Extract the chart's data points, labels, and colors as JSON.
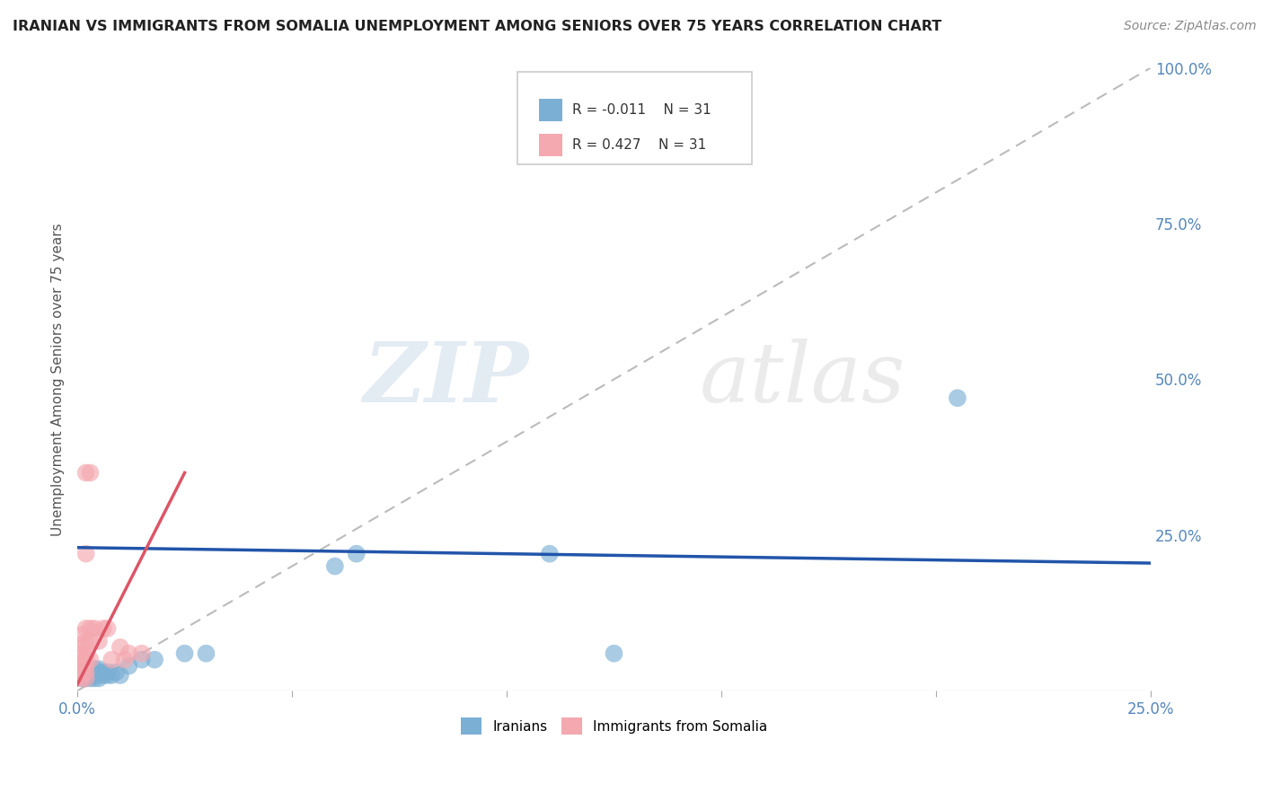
{
  "title": "IRANIAN VS IMMIGRANTS FROM SOMALIA UNEMPLOYMENT AMONG SENIORS OVER 75 YEARS CORRELATION CHART",
  "source": "Source: ZipAtlas.com",
  "ylabel": "Unemployment Among Seniors over 75 years",
  "legend_iranians": "Iranians",
  "legend_somalia": "Immigrants from Somalia",
  "R_iranians": "-0.011",
  "N_iranians": "31",
  "R_somalia": "0.427",
  "N_somalia": "31",
  "iranians_color": "#7BAFD4",
  "somalia_color": "#F4A8B0",
  "iranians_line_color": "#2255AA",
  "somalia_line_color": "#DD5566",
  "diagonal_color": "#BBBBBB",
  "background_color": "#FFFFFF",
  "watermark_zip": "ZIP",
  "watermark_atlas": "atlas",
  "xmin": 0.0,
  "xmax": 0.25,
  "ymin": 0.0,
  "ymax": 1.0,
  "iranians_x": [
    0.001,
    0.001,
    0.001,
    0.002,
    0.002,
    0.002,
    0.003,
    0.003,
    0.004,
    0.004,
    0.004,
    0.005,
    0.005,
    0.005,
    0.006,
    0.006,
    0.007,
    0.007,
    0.008,
    0.009,
    0.01,
    0.012,
    0.015,
    0.018,
    0.025,
    0.03,
    0.06,
    0.065,
    0.11,
    0.125,
    0.205
  ],
  "iranians_y": [
    0.02,
    0.025,
    0.03,
    0.02,
    0.025,
    0.03,
    0.02,
    0.03,
    0.02,
    0.025,
    0.035,
    0.02,
    0.03,
    0.035,
    0.025,
    0.03,
    0.025,
    0.03,
    0.025,
    0.03,
    0.025,
    0.04,
    0.05,
    0.05,
    0.06,
    0.06,
    0.2,
    0.22,
    0.22,
    0.06,
    0.47
  ],
  "somalia_x": [
    0.001,
    0.001,
    0.001,
    0.001,
    0.001,
    0.001,
    0.001,
    0.001,
    0.001,
    0.002,
    0.002,
    0.002,
    0.002,
    0.002,
    0.002,
    0.002,
    0.002,
    0.002,
    0.003,
    0.003,
    0.003,
    0.003,
    0.004,
    0.005,
    0.006,
    0.007,
    0.008,
    0.01,
    0.011,
    0.012,
    0.015
  ],
  "somalia_y": [
    0.02,
    0.025,
    0.03,
    0.035,
    0.04,
    0.045,
    0.06,
    0.075,
    0.09,
    0.02,
    0.03,
    0.04,
    0.05,
    0.06,
    0.075,
    0.1,
    0.22,
    0.35,
    0.05,
    0.08,
    0.1,
    0.35,
    0.1,
    0.08,
    0.1,
    0.1,
    0.05,
    0.07,
    0.05,
    0.06,
    0.06
  ],
  "iranians_line_x": [
    0.0,
    0.25
  ],
  "iranians_line_y": [
    0.23,
    0.205
  ],
  "somalia_line_x": [
    0.0,
    0.025
  ],
  "somalia_line_y": [
    0.01,
    0.35
  ]
}
